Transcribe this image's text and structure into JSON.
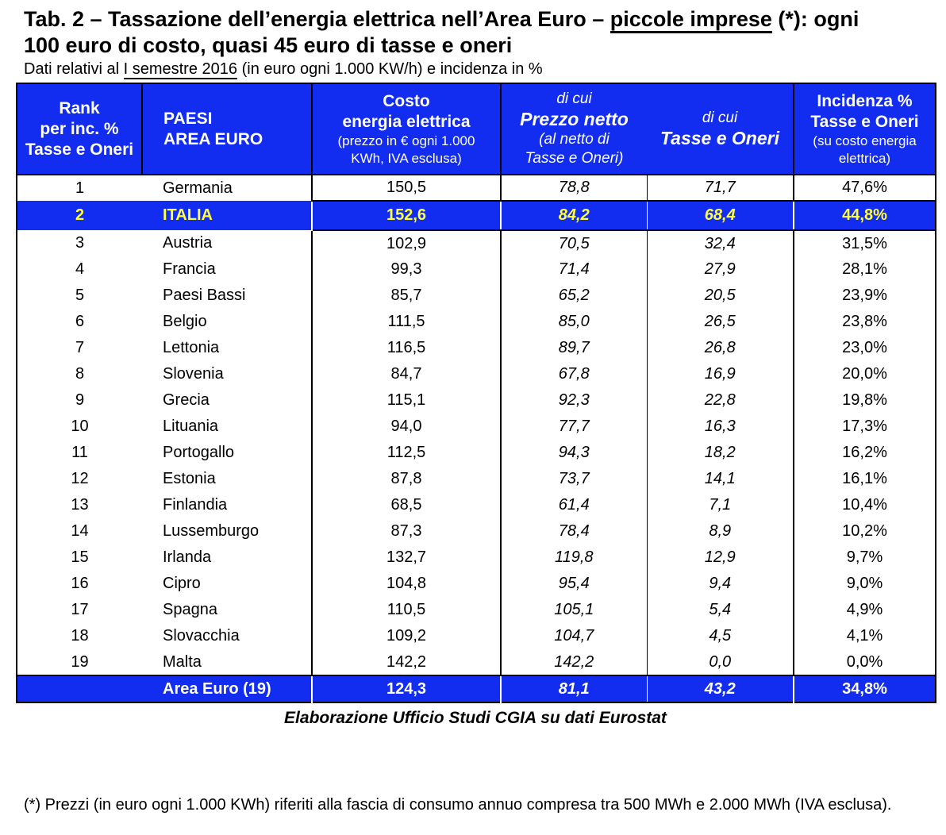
{
  "colors": {
    "blue": "#122cf0",
    "yellow": "#ffff3d"
  },
  "page": {
    "title": {
      "part1": "Tab. 2 – Tassazione dell’energia elettrica nell’Area Euro – ",
      "underlined": "piccole imprese",
      "part2": " (*): ogni",
      "line2": "100 euro di costo, quasi 45 euro di  tasse e oneri"
    },
    "subtitle": {
      "part1": "Dati relativi al ",
      "underlined": "I semestre 2016",
      "part2": " (in euro ogni 1.000 KW/h) e incidenza in %"
    },
    "caption": "Elaborazione Ufficio Studi CGIA su dati Eurostat",
    "footnote": "(*) Prezzi (in euro ogni 1.000 KWh) riferiti alla fascia di consumo annuo compresa tra 500 MWh e 2.000 MWh (IVA esclusa)."
  },
  "table": {
    "headers": {
      "rank": "Rank\nper inc. %\nTasse e Oneri",
      "country": "PAESI\nAREA EURO",
      "cost_bold": "Costo\nenergia elettrica",
      "cost_sub": "(prezzo in € ogni 1.000\nKWh, IVA esclusa)",
      "net_pre": "di cui",
      "net_bold": "Prezzo netto",
      "net_sub": "(al netto di\nTasse e Oneri)",
      "tax_pre": "di cui",
      "tax_bold": "Tasse e Oneri",
      "pct_bold": "Incidenza %\nTasse e Oneri",
      "pct_sub": "(su costo energia\nelettrica)"
    },
    "rows": [
      {
        "rank": "1",
        "country": "Germania",
        "cost": "150,5",
        "net": "78,8",
        "tax": "71,7",
        "pct": "47,6%",
        "highlight": false
      },
      {
        "rank": "2",
        "country": "ITALIA",
        "cost": "152,6",
        "net": "84,2",
        "tax": "68,4",
        "pct": "44,8%",
        "highlight": true
      },
      {
        "rank": "3",
        "country": "Austria",
        "cost": "102,9",
        "net": "70,5",
        "tax": "32,4",
        "pct": "31,5%",
        "highlight": false
      },
      {
        "rank": "4",
        "country": "Francia",
        "cost": "99,3",
        "net": "71,4",
        "tax": "27,9",
        "pct": "28,1%",
        "highlight": false
      },
      {
        "rank": "5",
        "country": "Paesi Bassi",
        "cost": "85,7",
        "net": "65,2",
        "tax": "20,5",
        "pct": "23,9%",
        "highlight": false
      },
      {
        "rank": "6",
        "country": "Belgio",
        "cost": "111,5",
        "net": "85,0",
        "tax": "26,5",
        "pct": "23,8%",
        "highlight": false
      },
      {
        "rank": "7",
        "country": "Lettonia",
        "cost": "116,5",
        "net": "89,7",
        "tax": "26,8",
        "pct": "23,0%",
        "highlight": false
      },
      {
        "rank": "8",
        "country": "Slovenia",
        "cost": "84,7",
        "net": "67,8",
        "tax": "16,9",
        "pct": "20,0%",
        "highlight": false
      },
      {
        "rank": "9",
        "country": "Grecia",
        "cost": "115,1",
        "net": "92,3",
        "tax": "22,8",
        "pct": "19,8%",
        "highlight": false
      },
      {
        "rank": "10",
        "country": "Lituania",
        "cost": "94,0",
        "net": "77,7",
        "tax": "16,3",
        "pct": "17,3%",
        "highlight": false
      },
      {
        "rank": "11",
        "country": "Portogallo",
        "cost": "112,5",
        "net": "94,3",
        "tax": "18,2",
        "pct": "16,2%",
        "highlight": false
      },
      {
        "rank": "12",
        "country": "Estonia",
        "cost": "87,8",
        "net": "73,7",
        "tax": "14,1",
        "pct": "16,1%",
        "highlight": false
      },
      {
        "rank": "13",
        "country": "Finlandia",
        "cost": "68,5",
        "net": "61,4",
        "tax": "7,1",
        "pct": "10,4%",
        "highlight": false
      },
      {
        "rank": "14",
        "country": "Lussemburgo",
        "cost": "87,3",
        "net": "78,4",
        "tax": "8,9",
        "pct": "10,2%",
        "highlight": false
      },
      {
        "rank": "15",
        "country": "Irlanda",
        "cost": "132,7",
        "net": "119,8",
        "tax": "12,9",
        "pct": "9,7%",
        "highlight": false
      },
      {
        "rank": "16",
        "country": "Cipro",
        "cost": "104,8",
        "net": "95,4",
        "tax": "9,4",
        "pct": "9,0%",
        "highlight": false
      },
      {
        "rank": "17",
        "country": "Spagna",
        "cost": "110,5",
        "net": "105,1",
        "tax": "5,4",
        "pct": "4,9%",
        "highlight": false
      },
      {
        "rank": "18",
        "country": "Slovacchia",
        "cost": "109,2",
        "net": "104,7",
        "tax": "4,5",
        "pct": "4,1%",
        "highlight": false
      },
      {
        "rank": "19",
        "country": "Malta",
        "cost": "142,2",
        "net": "142,2",
        "tax": "0,0",
        "pct": "0,0%",
        "highlight": false
      }
    ],
    "total": {
      "rank": "",
      "country": "Area Euro (19)",
      "cost": "124,3",
      "net": "81,1",
      "tax": "43,2",
      "pct": "34,8%"
    }
  }
}
